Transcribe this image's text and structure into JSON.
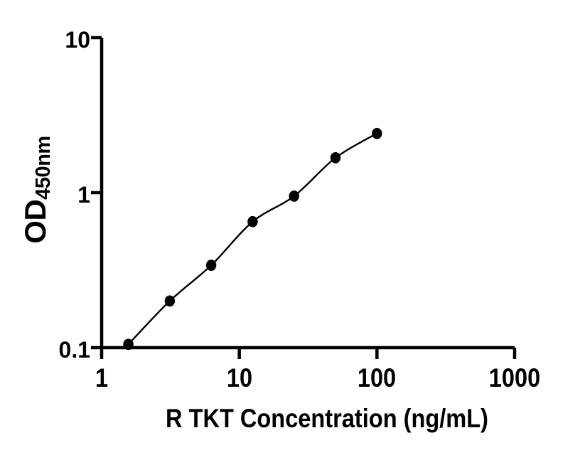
{
  "chart_data": {
    "type": "scatter",
    "curve": "smooth standard curve through points",
    "x": [
      1.5625,
      3.125,
      6.25,
      12.5,
      25,
      50,
      100
    ],
    "y": [
      0.105,
      0.2,
      0.34,
      0.65,
      0.95,
      1.68,
      2.41
    ],
    "xlabel": "R TKT Concentration (ng/mL)",
    "ylabel_main": "OD",
    "ylabel_sub": "450nm",
    "xscale": "log",
    "yscale": "log",
    "xlim": [
      1,
      1000
    ],
    "ylim": [
      0.1,
      10
    ],
    "xticks": {
      "values": [
        1,
        10,
        100,
        1000
      ],
      "labels": [
        "1",
        "10",
        "100",
        "1000"
      ]
    },
    "yticks": {
      "values": [
        0.1,
        1,
        10
      ],
      "labels": [
        "0.1",
        "1",
        "10"
      ]
    },
    "grid": false,
    "legend": "none",
    "marker_color": "#000000",
    "line_color": "#000000",
    "axis_color": "#000000",
    "background": "#ffffff"
  }
}
